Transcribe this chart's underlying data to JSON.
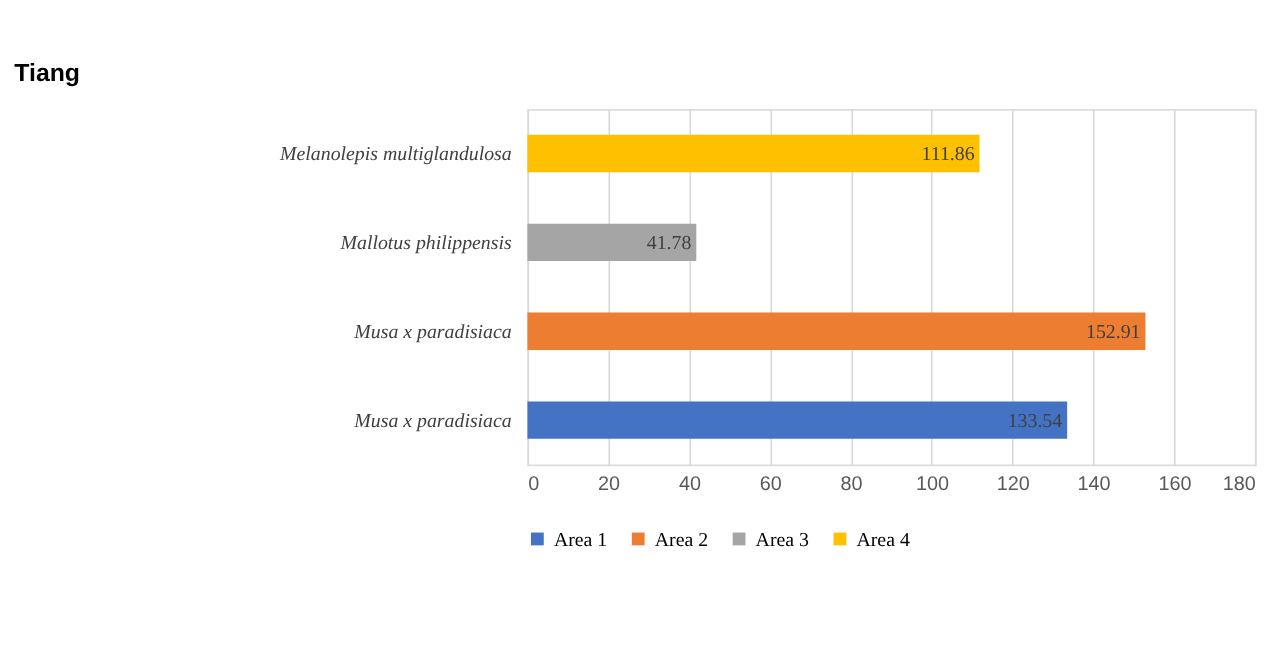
{
  "chart_data": {
    "type": "bar",
    "orientation": "horizontal",
    "title": "Tiang",
    "categories": [
      "Melanolepis multiglandulosa",
      "Mallotus philippensis",
      "Musa x paradisiaca",
      "Musa x paradisiaca"
    ],
    "series": [
      {
        "name": "Area 1",
        "color": "#4472c4",
        "values": [
          null,
          null,
          null,
          133.54
        ]
      },
      {
        "name": "Area 2",
        "color": "#ed7d31",
        "values": [
          null,
          null,
          152.91,
          null
        ]
      },
      {
        "name": "Area 3",
        "color": "#a5a5a5",
        "values": [
          null,
          41.78,
          null,
          null
        ]
      },
      {
        "name": "Area 4",
        "color": "#ffc000",
        "values": [
          111.86,
          null,
          null,
          null
        ]
      }
    ],
    "xlim": [
      0,
      180
    ],
    "xticks": [
      0,
      20,
      40,
      60,
      80,
      100,
      120,
      140,
      160,
      180
    ],
    "grid": "x",
    "legend": "bottom",
    "data_labels": true
  }
}
